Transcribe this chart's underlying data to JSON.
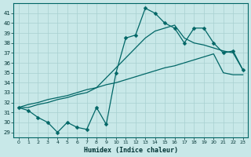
{
  "xlabel": "Humidex (Indice chaleur)",
  "bg_color": "#c8e8e8",
  "line_color": "#006666",
  "grid_color": "#a8d0d0",
  "xlim": [
    -0.5,
    23.5
  ],
  "ylim": [
    28.5,
    42.0
  ],
  "xticks": [
    0,
    1,
    2,
    3,
    4,
    5,
    6,
    7,
    8,
    9,
    10,
    11,
    12,
    13,
    14,
    15,
    16,
    17,
    18,
    19,
    20,
    21,
    22,
    23
  ],
  "yticks": [
    29,
    30,
    31,
    32,
    33,
    34,
    35,
    36,
    37,
    38,
    39,
    40,
    41
  ],
  "line1_x": [
    0,
    1,
    2,
    3,
    4,
    5,
    6,
    7,
    8,
    9,
    10,
    11,
    12,
    13,
    14,
    15,
    16,
    17,
    18,
    19,
    20,
    21,
    22,
    23
  ],
  "line1_y": [
    31.5,
    31.2,
    30.5,
    30.0,
    29.0,
    30.0,
    29.5,
    29.3,
    31.5,
    29.8,
    35.0,
    38.5,
    38.8,
    41.5,
    41.0,
    40.0,
    39.5,
    38.0,
    39.5,
    39.5,
    38.0,
    37.0,
    37.2,
    35.3
  ],
  "line2_x": [
    0,
    1,
    2,
    3,
    4,
    5,
    6,
    7,
    8,
    9,
    10,
    11,
    12,
    13,
    14,
    15,
    16,
    17,
    18,
    19,
    20,
    21,
    22,
    23
  ],
  "line2_y": [
    31.5,
    31.8,
    32.0,
    32.3,
    32.5,
    32.7,
    33.0,
    33.3,
    33.5,
    33.8,
    34.0,
    34.3,
    34.6,
    34.9,
    35.2,
    35.5,
    35.7,
    36.0,
    36.3,
    36.6,
    36.9,
    35.0,
    34.8,
    34.8
  ],
  "line3_x": [
    0,
    1,
    2,
    3,
    4,
    5,
    6,
    7,
    8,
    9,
    10,
    11,
    12,
    13,
    14,
    15,
    16,
    17,
    18,
    19,
    20,
    21,
    22,
    23
  ],
  "line3_y": [
    31.5,
    31.5,
    31.8,
    32.0,
    32.3,
    32.5,
    32.8,
    33.0,
    33.5,
    34.5,
    35.5,
    36.5,
    37.5,
    38.5,
    39.2,
    39.5,
    39.8,
    38.5,
    38.0,
    37.8,
    37.5,
    37.2,
    37.0,
    35.3
  ]
}
